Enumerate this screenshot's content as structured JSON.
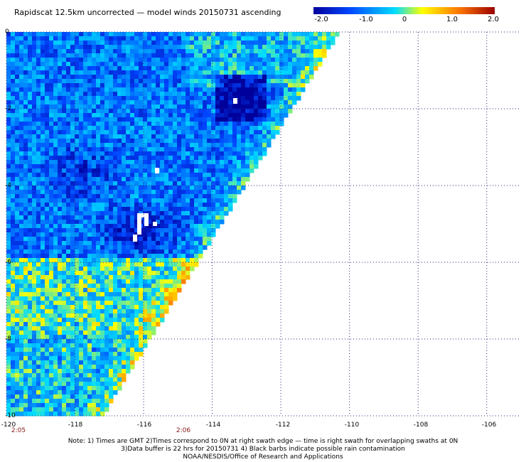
{
  "title": "Rapidscat 12.5km uncorrected — model winds 20150731 ascending",
  "colorbar": {
    "labels": [
      "-2.0",
      "-1.0",
      "0",
      "1.0",
      "2.0"
    ],
    "values": [
      -2.0,
      -1.0,
      0,
      1.0,
      2.0
    ],
    "colors": [
      "#00009b",
      "#0046ff",
      "#00dcff",
      "#ffff00",
      "#ff7800",
      "#9b0000"
    ]
  },
  "map": {
    "lon_range": [
      -120,
      -105
    ],
    "lat_range": [
      -10,
      0
    ],
    "lon_ticks": [
      "-120",
      "-118",
      "-116",
      "-114",
      "-112",
      "-110",
      "-108",
      "-106"
    ],
    "lat_ticks": [
      "0",
      "-2",
      "-4",
      "-6",
      "-8",
      "-10"
    ],
    "swath_edge": "right",
    "grid": "dotted"
  },
  "time_labels": [
    {
      "text": "2:05",
      "lon": -120
    },
    {
      "text": "2:06",
      "lon": -116
    }
  ],
  "notes": [
    "Note: 1) Times are GMT 2)Times correspond to 0N at right swath edge — time is right swath for overlapping swaths at 0N",
    "3)Data buffer is 22 hrs for 20150731 4) Black barbs indicate possible rain contamination",
    "NOAA/NESDIS/Office of Research and Applications"
  ]
}
